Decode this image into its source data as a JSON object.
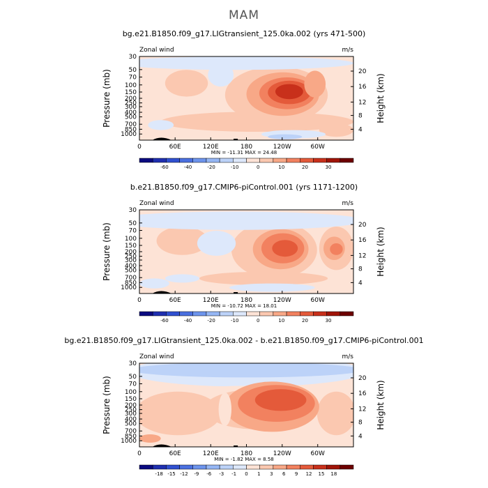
{
  "page_title": "MAM",
  "chart_data": [
    {
      "type": "heatmap",
      "title": "bg.e21.B1850.f09_g17.LIGtransient_125.0ka.002 (yrs 471-500)",
      "left_label": "Zonal wind",
      "right_label": "m/s",
      "ylabel": "Pressure (mb)",
      "ylabel_right": "Height (km)",
      "x_ticks": [
        "0",
        "60E",
        "120E",
        "180",
        "120W",
        "60W"
      ],
      "y_ticks": [
        "30",
        "50",
        "70",
        "100",
        "150",
        "200",
        "250",
        "300",
        "400",
        "500",
        "700",
        "850",
        "1000"
      ],
      "height_ticks": [
        "20",
        "16",
        "12",
        "8",
        "4"
      ],
      "stats": "MIN = -11.31   MAX =  24.48",
      "colorbar_labels": [
        "-60",
        "-40",
        "-20",
        "-10",
        "0",
        "10",
        "20",
        "30"
      ],
      "colors": [
        "#0b0b80",
        "#1f2fb0",
        "#3050d0",
        "#4a70e0",
        "#6d94ec",
        "#95b6f4",
        "#bcd2f8",
        "#dde8fb",
        "#fde3d6",
        "#fbc8b0",
        "#f8a887",
        "#f2815f",
        "#e45a3a",
        "#c8301b",
        "#a01408",
        "#6d0000"
      ]
    },
    {
      "type": "heatmap",
      "title": "b.e21.B1850.f09_g17.CMIP6-piControl.001 (yrs 1171-1200)",
      "left_label": "Zonal wind",
      "right_label": "m/s",
      "ylabel": "Pressure (mb)",
      "ylabel_right": "Height (km)",
      "x_ticks": [
        "0",
        "60E",
        "120E",
        "180",
        "120W",
        "60W"
      ],
      "y_ticks": [
        "30",
        "50",
        "70",
        "100",
        "150",
        "200",
        "250",
        "300",
        "400",
        "500",
        "700",
        "850",
        "1000"
      ],
      "height_ticks": [
        "20",
        "16",
        "12",
        "8",
        "4"
      ],
      "stats": "MIN = -10.72   MAX =  18.01",
      "colorbar_labels": [
        "-60",
        "-40",
        "-20",
        "-10",
        "0",
        "10",
        "20",
        "30"
      ],
      "colors": [
        "#0b0b80",
        "#1f2fb0",
        "#3050d0",
        "#4a70e0",
        "#6d94ec",
        "#95b6f4",
        "#bcd2f8",
        "#dde8fb",
        "#fde3d6",
        "#fbc8b0",
        "#f8a887",
        "#f2815f",
        "#e45a3a",
        "#c8301b",
        "#a01408",
        "#6d0000"
      ]
    },
    {
      "type": "heatmap",
      "title": "bg.e21.B1850.f09_g17.LIGtransient_125.0ka.002 - b.e21.B1850.f09_g17.CMIP6-piControl.001",
      "left_label": "Zonal wind",
      "right_label": "m/s",
      "ylabel": "Pressure (mb)",
      "ylabel_right": "Height (km)",
      "x_ticks": [
        "0",
        "60E",
        "120E",
        "180",
        "120W",
        "60W"
      ],
      "y_ticks": [
        "30",
        "50",
        "70",
        "100",
        "150",
        "200",
        "250",
        "300",
        "400",
        "500",
        "700",
        "850",
        "1000"
      ],
      "height_ticks": [
        "20",
        "16",
        "12",
        "8",
        "4"
      ],
      "stats": "MIN =  -1.82   MAX =   8.58",
      "colorbar_labels": [
        "-18",
        "-15",
        "-12",
        "-9",
        "-6",
        "-3",
        "-1",
        "0",
        "1",
        "3",
        "6",
        "9",
        "12",
        "15",
        "18"
      ],
      "colors": [
        "#0b0b80",
        "#1f2fb0",
        "#3050d0",
        "#4a70e0",
        "#6d94ec",
        "#95b6f4",
        "#bcd2f8",
        "#dde8fb",
        "#fde3d6",
        "#fbc8b0",
        "#f8a887",
        "#f2815f",
        "#e45a3a",
        "#c8301b",
        "#a01408",
        "#6d0000"
      ]
    }
  ]
}
